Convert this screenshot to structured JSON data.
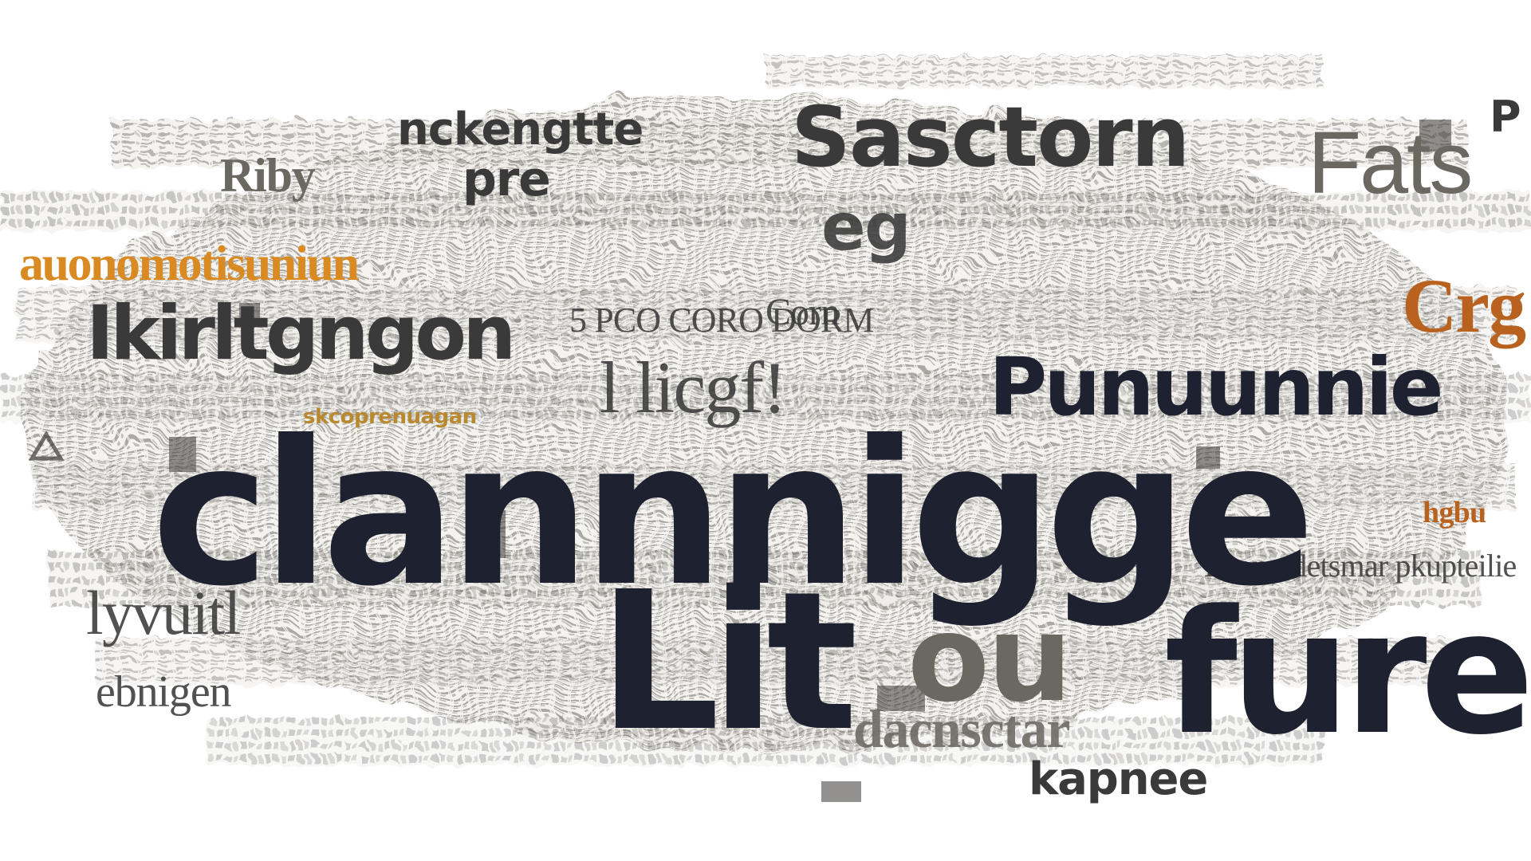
{
  "words": {
    "hero_1": "clannnigge",
    "hero_2_a": "Lit",
    "hero_2_b": "ou",
    "hero_2_c": "fure",
    "sasctorn": "Sasctorn",
    "fats": "Fats",
    "punuunnie": "Punuunnie",
    "nckengtte": "nckengtte",
    "riby": "Riby",
    "pre": "pre",
    "eg": "eg",
    "auonomotisuniun": "auonomotisuniun",
    "ikirltgngon": "Ikirltgngon",
    "l_icgf": "l licgf!",
    "kapnee": "kapnee",
    "dacnsctar": "dacnsctar",
    "corn": "Corn",
    "crg": "Crg",
    "lyvuitl": "lyvuitl",
    "ebnigen": "ebnigen",
    "sco_orange": "skcoprenuagan",
    "hgbu": "hgbu",
    "p_right": "P",
    "row_small_1": "5 PCO CORO DORM",
    "row_small_2": "Lcomndetsmar pkupteilie"
  },
  "colors": {
    "dark": "#1e2130",
    "orange": "#d98a22",
    "grey": "#3a3a3a",
    "rust": "#b9621f"
  }
}
